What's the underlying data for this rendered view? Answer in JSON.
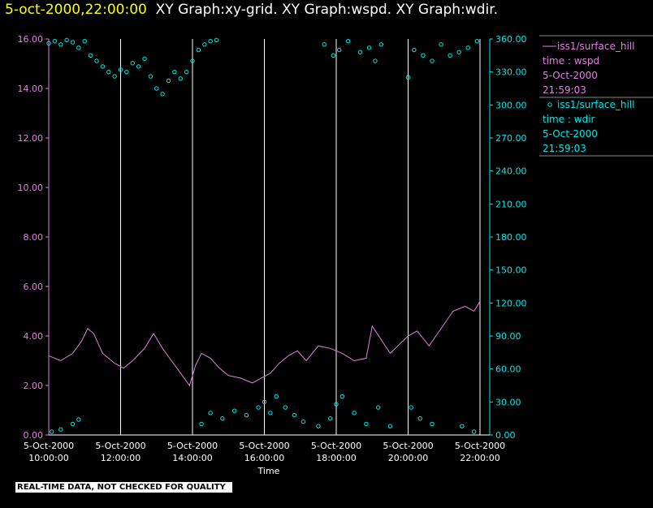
{
  "header": {
    "timestamp": "5-oct-2000,22:00:00",
    "graphs": "XY Graph:xy-grid.  XY Graph:wspd.  XY Graph:wdir."
  },
  "notice": "REAL-TIME DATA, NOT CHECKED FOR QUALITY",
  "colors": {
    "wspd": "#e080e0",
    "wdir": "#00e8e8",
    "grid": "#ffffff",
    "background": "#000000"
  },
  "chart_data": {
    "type": "line",
    "xlabel": "Time",
    "x_range": [
      "10:00:00",
      "22:00:00"
    ],
    "x_ticks": [
      {
        "date": "5-Oct-2000",
        "time": "10:00:00"
      },
      {
        "date": "5-Oct-2000",
        "time": "12:00:00"
      },
      {
        "date": "5-Oct-2000",
        "time": "14:00:00"
      },
      {
        "date": "5-Oct-2000",
        "time": "16:00:00"
      },
      {
        "date": "5-Oct-2000",
        "time": "18:00:00"
      },
      {
        "date": "5-Oct-2000",
        "time": "20:00:00"
      },
      {
        "date": "5-Oct-2000",
        "time": "22:00:00"
      }
    ],
    "y_left": {
      "ylim": [
        0,
        16
      ],
      "ticks": [
        "0.00",
        "2.00",
        "4.00",
        "6.00",
        "8.00",
        "10.00",
        "12.00",
        "14.00",
        "16.00"
      ]
    },
    "y_right": {
      "ylim": [
        0,
        360
      ],
      "ticks": [
        "0.00",
        "30.00",
        "60.00",
        "90.00",
        "120.00",
        "150.00",
        "180.00",
        "210.00",
        "240.00",
        "270.00",
        "300.00",
        "330.00",
        "360.00"
      ]
    },
    "grid": "vertical lines at x ticks",
    "legend_position": "right",
    "series": [
      {
        "name": "iss1/surface_hill",
        "label": "time : wspd",
        "date": "5-Oct-2000",
        "time": "21:59:03",
        "style": "line",
        "axis": "left",
        "points": [
          [
            "10:00",
            3.2
          ],
          [
            "10:20",
            3.0
          ],
          [
            "10:40",
            3.3
          ],
          [
            "10:55",
            3.8
          ],
          [
            "11:05",
            4.3
          ],
          [
            "11:15",
            4.1
          ],
          [
            "11:30",
            3.3
          ],
          [
            "11:50",
            2.9
          ],
          [
            "12:05",
            2.7
          ],
          [
            "12:20",
            3.0
          ],
          [
            "12:40",
            3.5
          ],
          [
            "12:55",
            4.1
          ],
          [
            "13:10",
            3.5
          ],
          [
            "13:25",
            3.0
          ],
          [
            "13:40",
            2.5
          ],
          [
            "13:55",
            2.0
          ],
          [
            "14:05",
            2.8
          ],
          [
            "14:15",
            3.3
          ],
          [
            "14:30",
            3.1
          ],
          [
            "14:45",
            2.7
          ],
          [
            "15:00",
            2.4
          ],
          [
            "15:20",
            2.3
          ],
          [
            "15:40",
            2.1
          ],
          [
            "15:55",
            2.3
          ],
          [
            "16:10",
            2.5
          ],
          [
            "16:25",
            2.9
          ],
          [
            "16:40",
            3.2
          ],
          [
            "16:55",
            3.4
          ],
          [
            "17:10",
            3.0
          ],
          [
            "17:30",
            3.6
          ],
          [
            "17:50",
            3.5
          ],
          [
            "18:10",
            3.3
          ],
          [
            "18:30",
            3.0
          ],
          [
            "18:50",
            3.1
          ],
          [
            "19:00",
            4.4
          ],
          [
            "19:30",
            3.3
          ],
          [
            "20:00",
            4.0
          ],
          [
            "20:15",
            4.2
          ],
          [
            "20:35",
            3.6
          ],
          [
            "20:55",
            4.3
          ],
          [
            "21:15",
            5.0
          ],
          [
            "21:35",
            5.2
          ],
          [
            "21:50",
            5.0
          ],
          [
            "22:00",
            5.4
          ]
        ]
      },
      {
        "name": "iss1/surface_hill",
        "label": "time : wdir",
        "date": "5-Oct-2000",
        "time": "21:59:03",
        "style": "scatter",
        "axis": "right",
        "points": [
          [
            "10:00",
            356
          ],
          [
            "10:10",
            358
          ],
          [
            "10:20",
            355
          ],
          [
            "10:30",
            359
          ],
          [
            "10:40",
            357
          ],
          [
            "10:50",
            352
          ],
          [
            "11:00",
            358
          ],
          [
            "11:10",
            345
          ],
          [
            "11:20",
            340
          ],
          [
            "11:30",
            335
          ],
          [
            "11:40",
            330
          ],
          [
            "11:50",
            326
          ],
          [
            "12:00",
            332
          ],
          [
            "12:10",
            330
          ],
          [
            "12:20",
            338
          ],
          [
            "12:30",
            335
          ],
          [
            "12:40",
            342
          ],
          [
            "12:50",
            326
          ],
          [
            "13:00",
            315
          ],
          [
            "13:10",
            310
          ],
          [
            "13:20",
            322
          ],
          [
            "13:30",
            330
          ],
          [
            "13:40",
            324
          ],
          [
            "13:50",
            330
          ],
          [
            "14:00",
            340
          ],
          [
            "14:10",
            350
          ],
          [
            "14:20",
            355
          ],
          [
            "14:30",
            358
          ],
          [
            "14:40",
            359
          ],
          [
            "10:05",
            3
          ],
          [
            "10:20",
            5
          ],
          [
            "10:40",
            10
          ],
          [
            "10:50",
            14
          ],
          [
            "14:15",
            10
          ],
          [
            "14:30",
            20
          ],
          [
            "14:50",
            15
          ],
          [
            "15:10",
            22
          ],
          [
            "15:30",
            18
          ],
          [
            "15:50",
            25
          ],
          [
            "16:00",
            30
          ],
          [
            "16:10",
            20
          ],
          [
            "16:20",
            35
          ],
          [
            "16:35",
            25
          ],
          [
            "16:50",
            18
          ],
          [
            "17:05",
            12
          ],
          [
            "17:30",
            8
          ],
          [
            "17:50",
            15
          ],
          [
            "18:00",
            28
          ],
          [
            "18:10",
            35
          ],
          [
            "18:30",
            20
          ],
          [
            "18:50",
            10
          ],
          [
            "19:10",
            25
          ],
          [
            "19:30",
            8
          ],
          [
            "17:40",
            355
          ],
          [
            "17:55",
            345
          ],
          [
            "18:05",
            350
          ],
          [
            "18:20",
            358
          ],
          [
            "18:40",
            348
          ],
          [
            "18:55",
            352
          ],
          [
            "19:05",
            340
          ],
          [
            "19:15",
            355
          ],
          [
            "20:00",
            325
          ],
          [
            "20:10",
            350
          ],
          [
            "20:25",
            345
          ],
          [
            "20:40",
            340
          ],
          [
            "20:55",
            355
          ],
          [
            "21:10",
            345
          ],
          [
            "21:25",
            348
          ],
          [
            "21:40",
            352
          ],
          [
            "21:55",
            358
          ],
          [
            "20:05",
            25
          ],
          [
            "20:20",
            15
          ],
          [
            "20:40",
            10
          ],
          [
            "21:30",
            8
          ],
          [
            "21:50",
            3
          ]
        ]
      }
    ]
  }
}
